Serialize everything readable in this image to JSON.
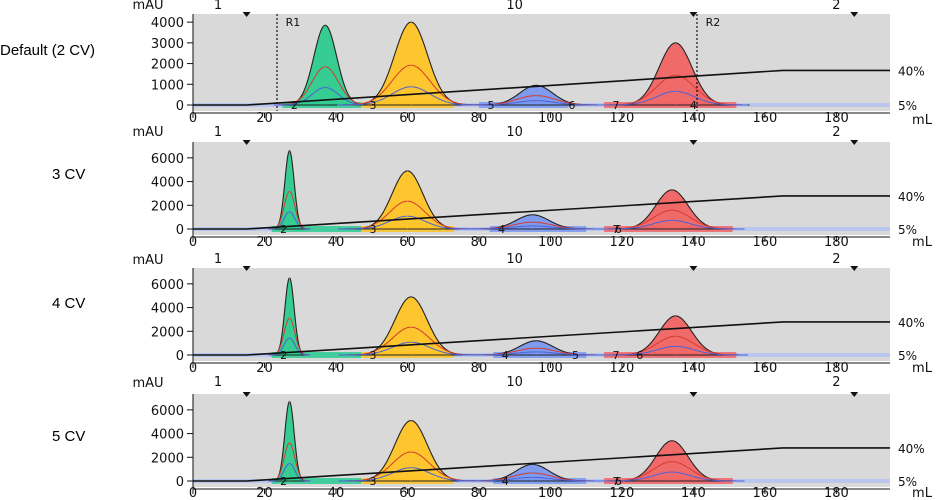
{
  "figure": {
    "x_unit": "mL",
    "y_unit": "mAU"
  },
  "chart_data": [
    {
      "type": "line",
      "title": "Default (2 CV)",
      "xlabel": "mL",
      "ylabel": "mAU",
      "xlim": [
        0,
        195
      ],
      "ylim": [
        0,
        4200
      ],
      "x_ticks": [
        0,
        20,
        40,
        60,
        80,
        100,
        120,
        140,
        160,
        180
      ],
      "y_ticks": [
        0,
        1000,
        2000,
        3000,
        4000
      ],
      "gradient": {
        "start_label": "5%",
        "end_label": "40%",
        "x": [
          0,
          15,
          165,
          195
        ],
        "pct": [
          5,
          5,
          40,
          40
        ]
      },
      "fraction_marks": [
        {
          "label": "1",
          "x": 7
        },
        {
          "label": "10",
          "x": 90
        },
        {
          "label": "2",
          "x": 180
        }
      ],
      "markers": [
        {
          "label": "R1",
          "x": 23.5
        },
        {
          "label": "R2",
          "x": 141
        }
      ],
      "peaks": [
        {
          "center": 37,
          "height": 3850,
          "width": 3.2,
          "color": "#2ecc8f",
          "fraction_label": "2",
          "frac_x": [
            25,
            47
          ]
        },
        {
          "center": 61,
          "height": 4000,
          "width": 4.6,
          "color": "#ffc425",
          "fraction_label": "3",
          "frac_x": [
            47,
            73
          ]
        },
        {
          "center": 96,
          "height": 950,
          "width": 4.6,
          "color": "#7a98f0",
          "fraction_label": "5",
          "frac_x": [
            80,
            105
          ]
        },
        {
          "center": 135,
          "height": 3000,
          "width": 4.6,
          "color": "#f26565",
          "fraction_label": "7",
          "frac_x": [
            115,
            152
          ]
        }
      ],
      "fraction_labels_extra": [
        {
          "label": "6",
          "x": 106
        },
        {
          "label": "4",
          "x": 140
        }
      ]
    },
    {
      "type": "line",
      "title": "3 CV",
      "xlabel": "mL",
      "ylabel": "mAU",
      "xlim": [
        0,
        195
      ],
      "ylim": [
        0,
        7000
      ],
      "x_ticks": [
        0,
        20,
        40,
        60,
        80,
        100,
        120,
        140,
        160,
        180
      ],
      "y_ticks": [
        0,
        2000,
        4000,
        6000
      ],
      "gradient": {
        "start_label": "5%",
        "end_label": "40%",
        "x": [
          0,
          15,
          165,
          195
        ],
        "pct": [
          5,
          5,
          40,
          40
        ]
      },
      "fraction_marks": [
        {
          "label": "1",
          "x": 7
        },
        {
          "label": "10",
          "x": 90
        },
        {
          "label": "2",
          "x": 180
        }
      ],
      "markers": [],
      "peaks": [
        {
          "center": 27,
          "height": 6600,
          "width": 1.3,
          "color": "#2ecc8f",
          "fraction_label": "2",
          "frac_x": [
            22,
            47
          ]
        },
        {
          "center": 60,
          "height": 4900,
          "width": 4.3,
          "color": "#ffc425",
          "fraction_label": "3",
          "frac_x": [
            47,
            73
          ]
        },
        {
          "center": 95,
          "height": 1200,
          "width": 4.6,
          "color": "#7a98f0",
          "fraction_label": "4",
          "frac_x": [
            83,
            110
          ]
        },
        {
          "center": 134,
          "height": 3300,
          "width": 4.5,
          "color": "#f26565",
          "fraction_label": "7",
          "frac_x": [
            115,
            151
          ]
        }
      ],
      "fraction_labels_extra": [
        {
          "label": "6",
          "x": 119
        }
      ]
    },
    {
      "type": "line",
      "title": "4 CV",
      "xlabel": "mL",
      "ylabel": "mAU",
      "xlim": [
        0,
        195
      ],
      "ylim": [
        0,
        7000
      ],
      "x_ticks": [
        0,
        20,
        40,
        60,
        80,
        100,
        120,
        140,
        160,
        180
      ],
      "y_ticks": [
        0,
        2000,
        4000,
        6000
      ],
      "gradient": {
        "start_label": "5%",
        "end_label": "40%",
        "x": [
          0,
          15,
          165,
          195
        ],
        "pct": [
          5,
          5,
          40,
          40
        ]
      },
      "fraction_marks": [
        {
          "label": "1",
          "x": 7
        },
        {
          "label": "10",
          "x": 90
        },
        {
          "label": "2",
          "x": 180
        }
      ],
      "markers": [],
      "peaks": [
        {
          "center": 27,
          "height": 6500,
          "width": 1.3,
          "color": "#2ecc8f",
          "fraction_label": "2",
          "frac_x": [
            22,
            47
          ]
        },
        {
          "center": 61,
          "height": 4900,
          "width": 4.5,
          "color": "#ffc425",
          "fraction_label": "3",
          "frac_x": [
            47,
            73
          ]
        },
        {
          "center": 96,
          "height": 1200,
          "width": 4.6,
          "color": "#7a98f0",
          "fraction_label": "4",
          "frac_x": [
            84,
            110
          ]
        },
        {
          "center": 135,
          "height": 3300,
          "width": 4.5,
          "color": "#f26565",
          "fraction_label": "7",
          "frac_x": [
            115,
            152
          ]
        }
      ],
      "fraction_labels_extra": [
        {
          "label": "5",
          "x": 107
        },
        {
          "label": "6",
          "x": 125
        }
      ]
    },
    {
      "type": "line",
      "title": "5 CV",
      "xlabel": "mL",
      "ylabel": "mAU",
      "xlim": [
        0,
        195
      ],
      "ylim": [
        0,
        7000
      ],
      "x_ticks": [
        0,
        20,
        40,
        60,
        80,
        100,
        120,
        140,
        160,
        180
      ],
      "y_ticks": [
        0,
        2000,
        4000,
        6000
      ],
      "gradient": {
        "start_label": "5%",
        "end_label": "40%",
        "x": [
          0,
          15,
          165,
          195
        ],
        "pct": [
          5,
          5,
          40,
          40
        ]
      },
      "fraction_marks": [
        {
          "label": "1",
          "x": 7
        },
        {
          "label": "10",
          "x": 90
        },
        {
          "label": "2",
          "x": 180
        }
      ],
      "markers": [],
      "peaks": [
        {
          "center": 27,
          "height": 6700,
          "width": 1.3,
          "color": "#2ecc8f",
          "fraction_label": "2",
          "frac_x": [
            22,
            47
          ]
        },
        {
          "center": 61,
          "height": 5100,
          "width": 4.5,
          "color": "#ffc425",
          "fraction_label": "3",
          "frac_x": [
            47,
            73
          ]
        },
        {
          "center": 95,
          "height": 1400,
          "width": 4.6,
          "color": "#7a98f0",
          "fraction_label": "4",
          "frac_x": [
            84,
            110
          ]
        },
        {
          "center": 134,
          "height": 3400,
          "width": 4.5,
          "color": "#f26565",
          "fraction_label": "7",
          "frac_x": [
            115,
            151
          ]
        }
      ],
      "fraction_labels_extra": [
        {
          "label": "6",
          "x": 119
        }
      ]
    }
  ]
}
